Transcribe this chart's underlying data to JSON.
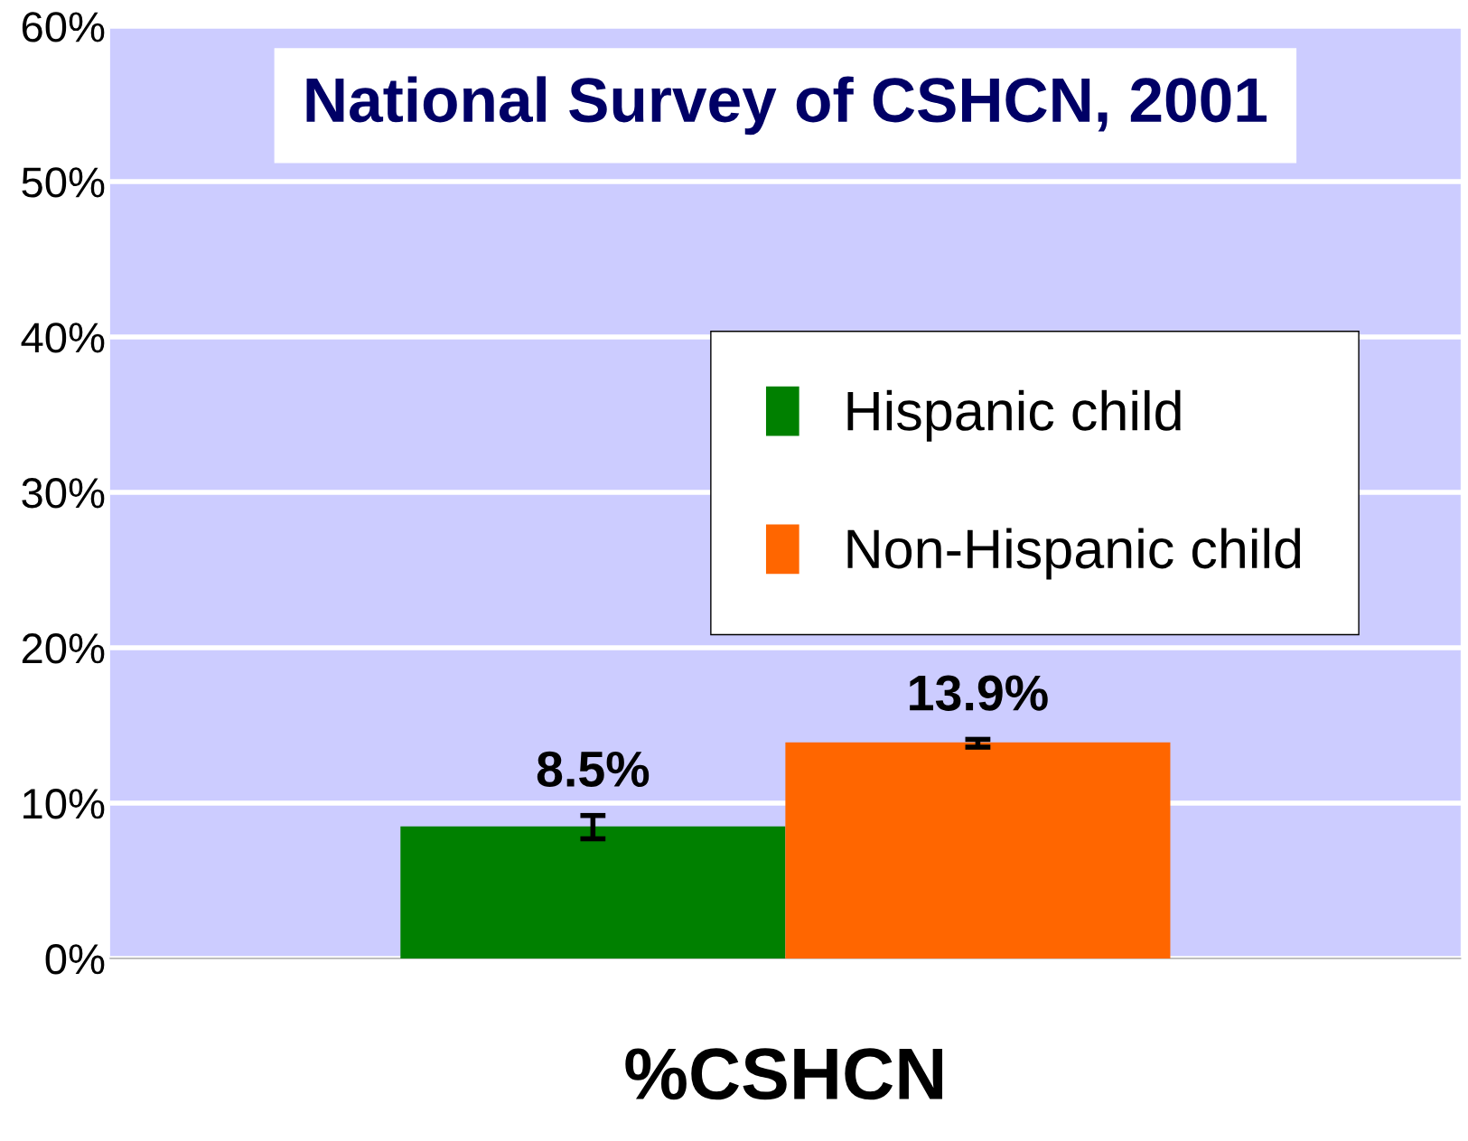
{
  "chart_data": {
    "type": "bar",
    "title": "National Survey of CSHCN, 2001",
    "categories": [
      "%CSHCN"
    ],
    "series": [
      {
        "name": "Hispanic child",
        "color": "#008000",
        "values": [
          8.5
        ],
        "errors": [
          [
            7.7,
            9.2
          ]
        ],
        "value_labels": [
          "8.5%"
        ]
      },
      {
        "name": "Non-Hispanic child",
        "color": "#ff6600",
        "values": [
          13.9
        ],
        "errors": [
          [
            13.6,
            14.1
          ]
        ],
        "value_labels": [
          "13.9%"
        ]
      }
    ],
    "ylim": [
      0,
      60
    ],
    "yticks": [
      {
        "value": 0,
        "label": "0%"
      },
      {
        "value": 10,
        "label": "10%"
      },
      {
        "value": 20,
        "label": "20%"
      },
      {
        "value": 30,
        "label": "30%"
      },
      {
        "value": 40,
        "label": "40%"
      },
      {
        "value": 50,
        "label": "50%"
      },
      {
        "value": 60,
        "label": "60%"
      }
    ],
    "grid": "y",
    "legend": "right"
  }
}
